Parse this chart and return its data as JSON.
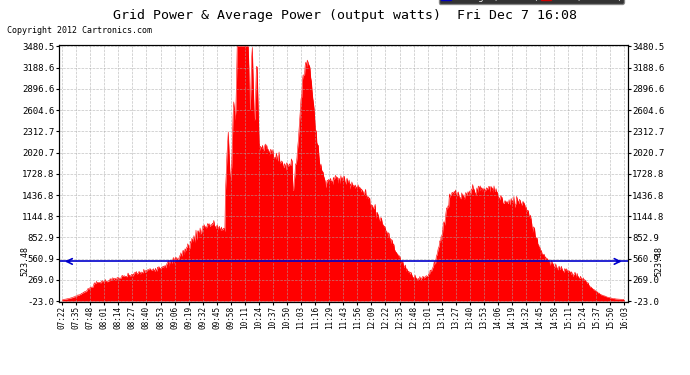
{
  "title": "Grid Power & Average Power (output watts)  Fri Dec 7 16:08",
  "copyright": "Copyright 2012 Cartronics.com",
  "background_color": "#ffffff",
  "plot_bg_color": "#ffffff",
  "grid_color": "#aaaaaa",
  "fill_color": "#ff0000",
  "line_color": "#ff0000",
  "avg_line_color": "#0000cc",
  "avg_value": 523.48,
  "y_min": -23.0,
  "y_max": 3480.5,
  "ytick_values": [
    3480.5,
    3188.6,
    2896.6,
    2604.6,
    2312.7,
    2020.7,
    1728.8,
    1436.8,
    1144.8,
    852.9,
    560.9,
    269.0,
    -23.0
  ],
  "x_tick_labels": [
    "07:22",
    "07:35",
    "07:48",
    "08:01",
    "08:14",
    "08:27",
    "08:40",
    "08:53",
    "09:06",
    "09:19",
    "09:32",
    "09:45",
    "09:58",
    "10:11",
    "10:24",
    "10:37",
    "10:50",
    "11:03",
    "11:16",
    "11:29",
    "11:43",
    "11:56",
    "12:09",
    "12:22",
    "12:35",
    "12:48",
    "13:01",
    "13:14",
    "13:27",
    "13:40",
    "13:53",
    "14:06",
    "14:19",
    "14:32",
    "14:45",
    "14:58",
    "15:11",
    "15:24",
    "15:37",
    "15:50",
    "16:03"
  ],
  "n_points": 820,
  "figwidth": 6.9,
  "figheight": 3.75,
  "dpi": 100
}
